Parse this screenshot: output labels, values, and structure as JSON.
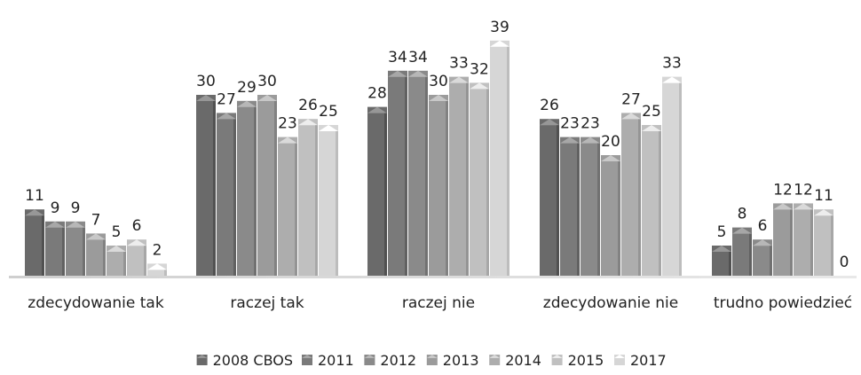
{
  "chart_data": {
    "type": "bar",
    "title": "",
    "xlabel": "",
    "ylabel": "",
    "ylim": [
      0,
      40
    ],
    "grid": false,
    "legend_position": "bottom",
    "categories": [
      "zdecydowanie tak",
      "raczej tak",
      "raczej nie",
      "zdecydowanie nie",
      "trudno powiedzieć"
    ],
    "series": [
      {
        "name": "2008 CBOS",
        "values": [
          11,
          30,
          28,
          26,
          5
        ],
        "color": "#6a6a6a"
      },
      {
        "name": "2011",
        "values": [
          9,
          27,
          34,
          23,
          8
        ],
        "color": "#7a7a7a"
      },
      {
        "name": "2012",
        "values": [
          9,
          29,
          34,
          23,
          6
        ],
        "color": "#8a8a8a"
      },
      {
        "name": "2013",
        "values": [
          7,
          30,
          30,
          20,
          12
        ],
        "color": "#9b9b9b"
      },
      {
        "name": "2014",
        "values": [
          5,
          23,
          33,
          27,
          12
        ],
        "color": "#adadad"
      },
      {
        "name": "2015",
        "values": [
          6,
          26,
          32,
          25,
          11
        ],
        "color": "#c0c0c0"
      },
      {
        "name": "2017",
        "values": [
          2,
          25,
          39,
          33,
          0
        ],
        "color": "#d6d6d6"
      }
    ]
  }
}
